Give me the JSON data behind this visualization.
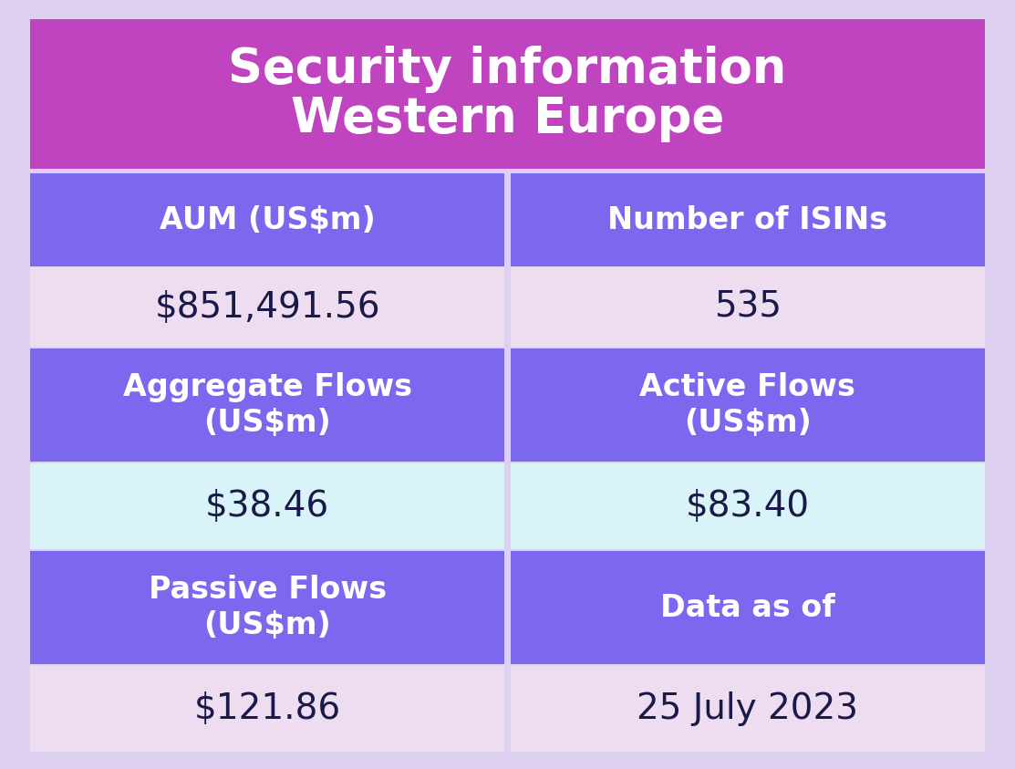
{
  "title_line1": "Security information",
  "title_line2": "Western Europe",
  "title_bg_color": "#c044c0",
  "title_text_color": "#ffffff",
  "header_bg_color": "#7b68ee",
  "header_text_color": "#ffffff",
  "value_bg_color_pink": "#eeddf0",
  "value_bg_color_light_blue": "#d8f4f8",
  "value_text_color": "#1a1a4a",
  "outer_bg_color": "#ddd0f0",
  "border_color": "#c8b8e8",
  "rows": [
    {
      "left_label": "AUM (US$m)",
      "right_label": "Number of ISINs",
      "left_value": "$851,491.56",
      "right_value": "535",
      "value_bg": "pink"
    },
    {
      "left_label": "Aggregate Flows\n(US$m)",
      "right_label": "Active Flows\n(US$m)",
      "left_value": "$38.46",
      "right_value": "$83.40",
      "value_bg": "lightblue"
    },
    {
      "left_label": "Passive Flows\n(US$m)",
      "right_label": "Data as of",
      "left_value": "$121.86",
      "right_value": "25 July 2023",
      "value_bg": "pink"
    }
  ],
  "figsize": [
    11.13,
    8.43
  ],
  "dpi": 100
}
